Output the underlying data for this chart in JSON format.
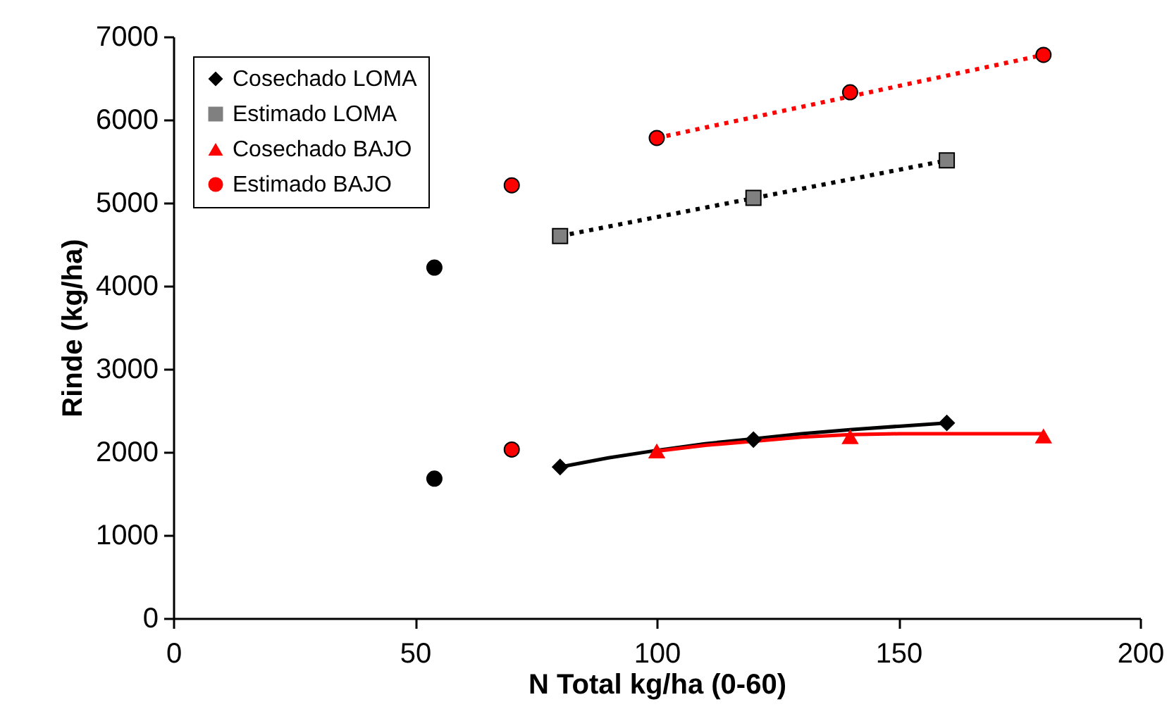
{
  "chart_data": {
    "type": "scatter",
    "xlabel": "N Total kg/ha (0-60)",
    "ylabel": "Rinde (kg/ha)",
    "xlim": [
      0,
      200
    ],
    "xticks": [
      0,
      50,
      100,
      150,
      200
    ],
    "ylim": [
      0,
      7000
    ],
    "yticks": [
      0,
      1000,
      2000,
      3000,
      4000,
      5000,
      6000,
      7000
    ],
    "legend": "top left",
    "series": [
      {
        "type": "line",
        "color": "#000000",
        "line_style": "solid",
        "marker": "none",
        "x": [
          80,
          90,
          100,
          110,
          120,
          130,
          140,
          150,
          160
        ],
        "values": [
          1820,
          1930,
          2020,
          2100,
          2160,
          2220,
          2270,
          2310,
          2350
        ]
      },
      {
        "type": "line",
        "color": "#ff0000",
        "line_style": "solid",
        "marker": "none",
        "x": [
          100,
          110,
          120,
          130,
          140,
          150,
          160,
          170,
          180
        ],
        "values": [
          2010,
          2080,
          2130,
          2180,
          2210,
          2220,
          2220,
          2220,
          2220
        ]
      },
      {
        "type": "line",
        "color": "#000000",
        "line_style": "dotted",
        "marker": "none",
        "x": [
          80,
          160
        ],
        "values": [
          4600,
          5510
        ]
      },
      {
        "type": "line",
        "color": "#ff0000",
        "line_style": "dotted",
        "marker": "none",
        "x": [
          100,
          180
        ],
        "values": [
          5780,
          6780
        ]
      },
      {
        "color": "#000000",
        "marker": "circle",
        "x": [
          54,
          54
        ],
        "values": [
          4220,
          1680
        ]
      },
      {
        "color": "#ff0000",
        "marker": "circle",
        "x": [
          70,
          70
        ],
        "values": [
          5210,
          2030
        ]
      },
      {
        "name": "Cosechado LOMA",
        "color": "#000000",
        "marker": "diamond",
        "x": [
          80,
          120,
          160
        ],
        "values": [
          1820,
          2150,
          2350
        ]
      },
      {
        "name": "Estimado LOMA",
        "color": "#808080",
        "marker": "square",
        "x": [
          80,
          120,
          160
        ],
        "values": [
          4600,
          5060,
          5510
        ]
      },
      {
        "name": "Cosechado BAJO",
        "color": "#ff0000",
        "marker": "triangle",
        "x": [
          100,
          140,
          180
        ],
        "values": [
          2010,
          2180,
          2190
        ]
      },
      {
        "name": "Estimado BAJO",
        "color": "#ff0000",
        "marker": "circle",
        "x": [
          100,
          140,
          180
        ],
        "values": [
          5780,
          6330,
          6780
        ]
      }
    ]
  }
}
